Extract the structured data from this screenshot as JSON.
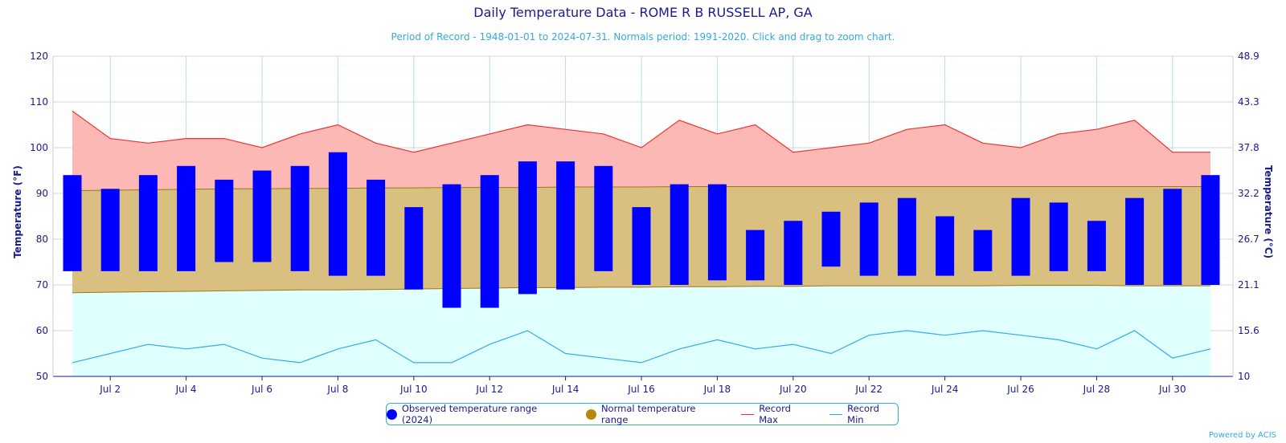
{
  "chart_data": {
    "type": "bar",
    "title": "Daily Temperature Data - ROME R B RUSSELL AP, GA",
    "subtitle": "Period of Record - 1948-01-01 to 2024-07-31. Normals period: 1991-2020. Click and drag to zoom chart.",
    "ylabel": "Temperature (°F)",
    "ylabel_right": "Temperature (°C)",
    "ylim": [
      50,
      120
    ],
    "yticks": [
      50,
      60,
      70,
      80,
      90,
      100,
      110,
      120
    ],
    "yticks_right": [
      "10",
      "15.6",
      "21.1",
      "26.7",
      "32.2",
      "37.8",
      "43.3",
      "48.9"
    ],
    "days": [
      1,
      2,
      3,
      4,
      5,
      6,
      7,
      8,
      9,
      10,
      11,
      12,
      13,
      14,
      15,
      16,
      17,
      18,
      19,
      20,
      21,
      22,
      23,
      24,
      25,
      26,
      27,
      28,
      29,
      30,
      31
    ],
    "x_tick_days": [
      2,
      4,
      6,
      8,
      10,
      12,
      14,
      16,
      18,
      20,
      22,
      24,
      26,
      28,
      30
    ],
    "x_tick_labels": [
      "Jul 2",
      "Jul 4",
      "Jul 6",
      "Jul 8",
      "Jul 10",
      "Jul 12",
      "Jul 14",
      "Jul 16",
      "Jul 18",
      "Jul 20",
      "Jul 22",
      "Jul 24",
      "Jul 26",
      "Jul 28",
      "Jul 30"
    ],
    "grid": true,
    "legend_position": "bottom-center",
    "series": [
      {
        "name": "Observed temperature range (2024)",
        "type": "columnrange",
        "color": "#0000ff",
        "low": [
          73,
          73,
          73,
          73,
          75,
          75,
          73,
          72,
          72,
          69,
          65,
          65,
          68,
          69,
          73,
          70,
          70,
          71,
          71,
          70,
          74,
          72,
          72,
          72,
          73,
          72,
          73,
          73,
          70,
          70,
          70
        ],
        "high": [
          94,
          91,
          94,
          96,
          93,
          95,
          96,
          99,
          93,
          87,
          92,
          94,
          97,
          97,
          96,
          87,
          92,
          92,
          82,
          84,
          86,
          88,
          89,
          85,
          82,
          89,
          88,
          84,
          89,
          91,
          94
        ]
      },
      {
        "name": "Normal temperature range",
        "type": "arearange",
        "color": "#b8860b",
        "low": [
          68.3,
          68.4,
          68.5,
          68.6,
          68.7,
          68.8,
          68.9,
          68.9,
          69.0,
          69.1,
          69.2,
          69.3,
          69.4,
          69.4,
          69.5,
          69.5,
          69.6,
          69.6,
          69.7,
          69.7,
          69.8,
          69.8,
          69.8,
          69.8,
          69.8,
          69.9,
          69.9,
          69.9,
          69.8,
          69.8,
          69.8
        ],
        "high": [
          90.6,
          90.7,
          90.8,
          90.9,
          91.0,
          91.0,
          91.1,
          91.1,
          91.2,
          91.2,
          91.3,
          91.3,
          91.3,
          91.4,
          91.4,
          91.4,
          91.5,
          91.5,
          91.5,
          91.5,
          91.5,
          91.5,
          91.5,
          91.5,
          91.5,
          91.5,
          91.5,
          91.5,
          91.5,
          91.5,
          91.5
        ]
      },
      {
        "name": "Record Max",
        "type": "line",
        "color": "#ee3333",
        "values": [
          108,
          102,
          101,
          102,
          102,
          100,
          103,
          105,
          101,
          99,
          101,
          103,
          105,
          104,
          103,
          100,
          106,
          103,
          105,
          99,
          100,
          101,
          104,
          105,
          101,
          100,
          103,
          104,
          106,
          99,
          99
        ]
      },
      {
        "name": "Record Min",
        "type": "line",
        "color": "#33aaee",
        "values": [
          53,
          55,
          57,
          56,
          57,
          54,
          53,
          56,
          58,
          53,
          53,
          57,
          60,
          55,
          54,
          53,
          56,
          58,
          56,
          57,
          55,
          59,
          60,
          59,
          60,
          59,
          58,
          56,
          60,
          54,
          56
        ]
      }
    ]
  },
  "credits": "Powered by ACIS"
}
